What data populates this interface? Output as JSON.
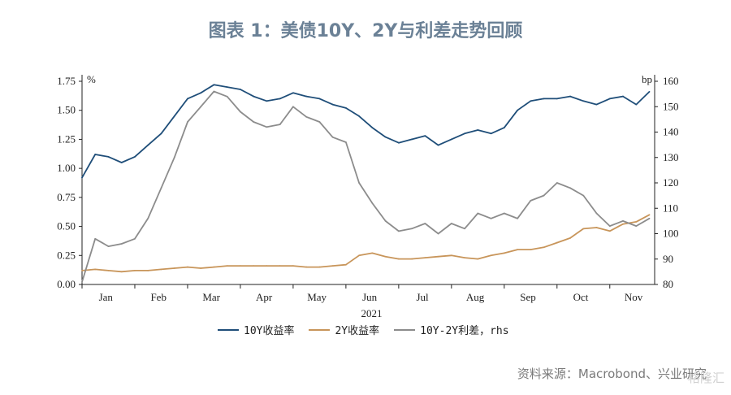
{
  "title": "图表 1：美债10Y、2Y与利差走势回顾",
  "source": "资料来源：Macrobond、兴业研究",
  "watermark": "格隆汇",
  "chart_data": {
    "type": "line",
    "xlabel": "2021",
    "left_unit": "%",
    "right_unit": "bp",
    "ylim_left": [
      0,
      1.75
    ],
    "yticks_left": [
      "0.00",
      "0.25",
      "0.50",
      "0.75",
      "1.00",
      "1.25",
      "1.50",
      "1.75"
    ],
    "ylim_right": [
      80,
      160
    ],
    "yticks_right": [
      "80",
      "90",
      "100",
      "110",
      "120",
      "130",
      "140",
      "150",
      "160"
    ],
    "months": [
      "Jan",
      "Feb",
      "Mar",
      "Apr",
      "May",
      "Jun",
      "Jul",
      "Aug",
      "Sep",
      "Oct",
      "Nov"
    ],
    "x": [
      0,
      0.25,
      0.5,
      0.75,
      1,
      1.25,
      1.5,
      1.75,
      2,
      2.25,
      2.5,
      2.75,
      3,
      3.25,
      3.5,
      3.75,
      4,
      4.25,
      4.5,
      4.75,
      5,
      5.25,
      5.5,
      5.75,
      6,
      6.25,
      6.5,
      6.75,
      7,
      7.25,
      7.5,
      7.75,
      8,
      8.25,
      8.5,
      8.75,
      9,
      9.25,
      9.5,
      9.75,
      10,
      10.25,
      10.5,
      10.75
    ],
    "series": [
      {
        "name": "10Y收益率",
        "axis": "left",
        "color": "#1f4e79",
        "values": [
          0.92,
          1.12,
          1.1,
          1.05,
          1.1,
          1.2,
          1.3,
          1.45,
          1.6,
          1.65,
          1.72,
          1.7,
          1.68,
          1.62,
          1.58,
          1.6,
          1.65,
          1.62,
          1.6,
          1.55,
          1.52,
          1.45,
          1.35,
          1.27,
          1.22,
          1.25,
          1.28,
          1.2,
          1.25,
          1.3,
          1.33,
          1.3,
          1.35,
          1.5,
          1.58,
          1.6,
          1.6,
          1.62,
          1.58,
          1.55,
          1.6,
          1.62,
          1.55,
          1.66
        ]
      },
      {
        "name": "2Y收益率",
        "axis": "left",
        "color": "#c8955a",
        "values": [
          0.12,
          0.13,
          0.12,
          0.11,
          0.12,
          0.12,
          0.13,
          0.14,
          0.15,
          0.14,
          0.15,
          0.16,
          0.16,
          0.16,
          0.16,
          0.16,
          0.16,
          0.15,
          0.15,
          0.16,
          0.17,
          0.25,
          0.27,
          0.24,
          0.22,
          0.22,
          0.23,
          0.24,
          0.25,
          0.23,
          0.22,
          0.25,
          0.27,
          0.3,
          0.3,
          0.32,
          0.36,
          0.4,
          0.48,
          0.49,
          0.46,
          0.52,
          0.54,
          0.6
        ]
      },
      {
        "name": "10Y-2Y利差，rhs",
        "axis": "right",
        "color": "#8c8c8c",
        "values": [
          81,
          98,
          95,
          96,
          98,
          106,
          118,
          130,
          144,
          150,
          156,
          154,
          148,
          144,
          142,
          143,
          150,
          146,
          144,
          138,
          136,
          120,
          112,
          105,
          101,
          102,
          104,
          100,
          104,
          102,
          108,
          106,
          108,
          106,
          113,
          115,
          120,
          118,
          115,
          108,
          103,
          105,
          103,
          106
        ]
      }
    ]
  }
}
